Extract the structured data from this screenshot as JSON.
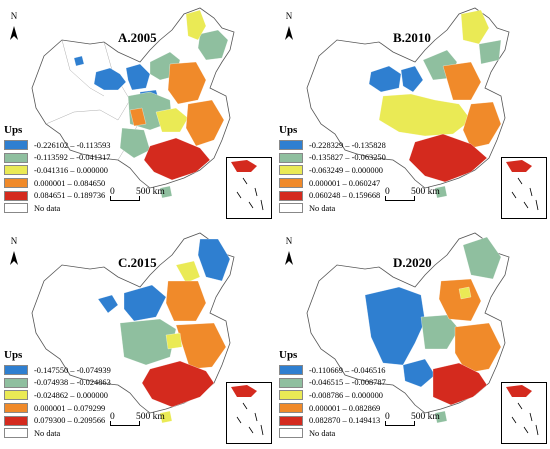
{
  "figure": {
    "panels": [
      {
        "id": "A",
        "title": "A.2005",
        "north_label": "N",
        "legend_title": "Ups",
        "legend": [
          {
            "label": "-0.226102 – -0.113593",
            "color": "#2f7fd0"
          },
          {
            "label": "-0.113592 – -0.041317",
            "color": "#8fbf9f"
          },
          {
            "label": "-0.041316 – 0.000000",
            "color": "#eaea55"
          },
          {
            "label": "0.000001 – 0.084650",
            "color": "#f08a2a"
          },
          {
            "label": "0.084651 – 0.189736",
            "color": "#d42a1e"
          },
          {
            "label": "No data",
            "color": "#ffffff"
          }
        ],
        "scale_zero": "0",
        "scale_label": "500 km"
      },
      {
        "id": "B",
        "title": "B.2010",
        "north_label": "N",
        "legend_title": "Ups",
        "legend": [
          {
            "label": "-0.228329 – -0.135828",
            "color": "#2f7fd0"
          },
          {
            "label": "-0.135827 – -0.063250",
            "color": "#8fbf9f"
          },
          {
            "label": "-0.063249 – 0.000000",
            "color": "#eaea55"
          },
          {
            "label": "0.000001 – 0.060247",
            "color": "#f08a2a"
          },
          {
            "label": "0.060248 – 0.159668",
            "color": "#d42a1e"
          },
          {
            "label": "No data",
            "color": "#ffffff"
          }
        ],
        "scale_zero": "0",
        "scale_label": "500 km"
      },
      {
        "id": "C",
        "title": "C.2015",
        "north_label": "N",
        "legend_title": "Ups",
        "legend": [
          {
            "label": "-0.147550 – -0.074939",
            "color": "#2f7fd0"
          },
          {
            "label": "-0.074938 – -0.024863",
            "color": "#8fbf9f"
          },
          {
            "label": "-0.024862 – 0.000000",
            "color": "#eaea55"
          },
          {
            "label": "0.000001 – 0.079299",
            "color": "#f08a2a"
          },
          {
            "label": "0.079300 – 0.209566",
            "color": "#d42a1e"
          },
          {
            "label": "No data",
            "color": "#ffffff"
          }
        ],
        "scale_zero": "0",
        "scale_label": "500 km"
      },
      {
        "id": "D",
        "title": "D.2020",
        "north_label": "N",
        "legend_title": "Ups",
        "legend": [
          {
            "label": "-0.110669 – -0.046516",
            "color": "#2f7fd0"
          },
          {
            "label": "-0.046515 – -0.008787",
            "color": "#8fbf9f"
          },
          {
            "label": "-0.008786 – 0.000000",
            "color": "#eaea55"
          },
          {
            "label": "0.000001 – 0.082869",
            "color": "#f08a2a"
          },
          {
            "label": "0.082870 – 0.149413",
            "color": "#d42a1e"
          },
          {
            "label": "No data",
            "color": "#ffffff"
          }
        ],
        "scale_zero": "0",
        "scale_label": "500 km"
      }
    ]
  }
}
